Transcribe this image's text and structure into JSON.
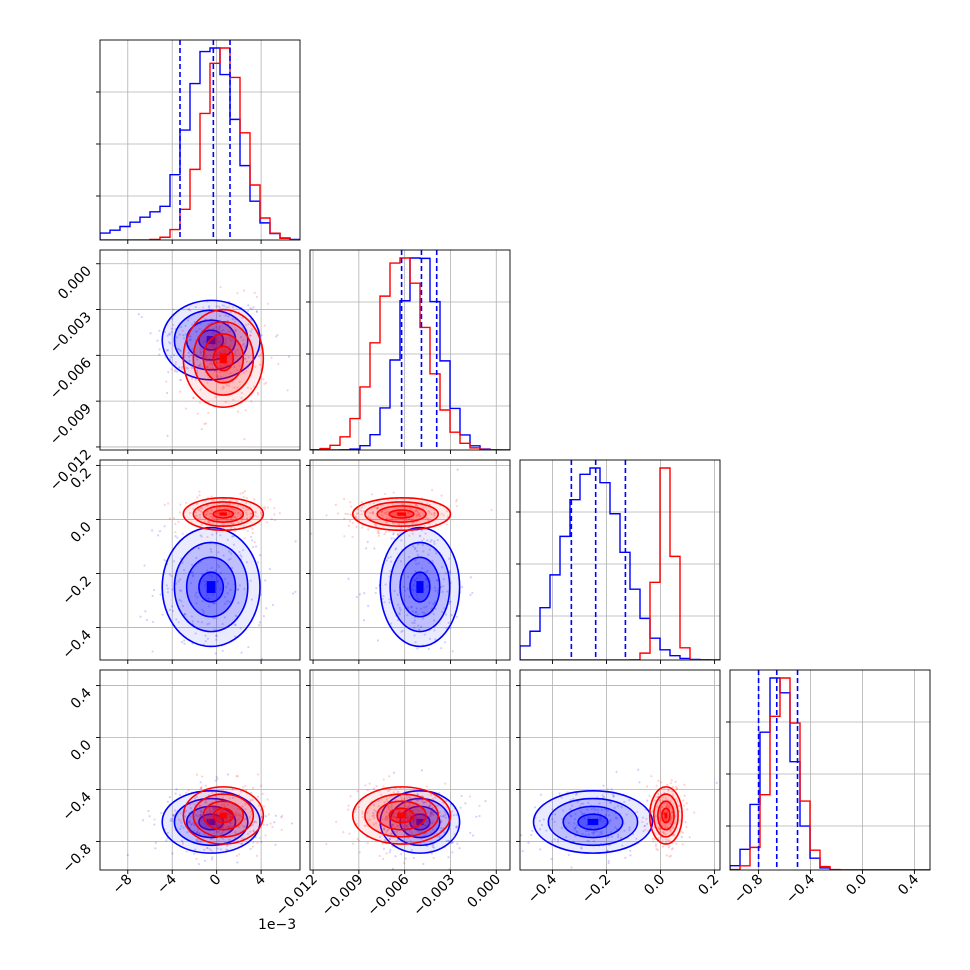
{
  "chart_data": {
    "type": "corner",
    "parameters": 4,
    "series": [
      {
        "color": "#0000ff",
        "means": [
          -0.0005,
          -0.005,
          -0.25,
          -0.65
        ],
        "stds": [
          0.0022,
          0.0013,
          0.11,
          0.12
        ],
        "quantile_lines": [
          [
            -0.0033,
            -0.0003,
            0.0012
          ],
          [
            -0.0062,
            -0.0049,
            -0.0039
          ],
          [
            -0.33,
            -0.24,
            -0.13
          ],
          [
            -0.8,
            -0.66,
            -0.5
          ]
        ]
      },
      {
        "color": "#ff0000",
        "means": [
          0.0006,
          -0.0062,
          0.02,
          -0.6
        ],
        "stds": [
          0.0018,
          0.0016,
          0.03,
          0.11
        ]
      }
    ],
    "axes": [
      {
        "range": [
          -0.0105,
          0.0075
        ],
        "ticks": [
          -0.008,
          -0.004,
          0,
          0.004
        ],
        "tick_labels": [
          "−8",
          "−4",
          "0",
          "4"
        ],
        "offset_label": "1e−3"
      },
      {
        "range": [
          -0.0122,
          0.0009
        ],
        "ticks": [
          -0.012,
          -0.009,
          -0.006,
          -0.003,
          0.0
        ],
        "tick_labels": [
          "−0.012",
          "−0.009",
          "−0.006",
          "−0.003",
          "0.000"
        ]
      },
      {
        "range": [
          -0.52,
          0.22
        ],
        "ticks": [
          -0.4,
          -0.2,
          0.0,
          0.2
        ],
        "tick_labels": [
          "−0.4",
          "−0.2",
          "0.0",
          "0.2"
        ]
      },
      {
        "range": [
          -1.02,
          0.52
        ],
        "ticks": [
          -0.8,
          -0.4,
          0.0,
          0.4
        ],
        "tick_labels": [
          "−0.8",
          "−0.4",
          "0.0",
          "0.4"
        ]
      }
    ],
    "grid": true,
    "legend": "none"
  }
}
